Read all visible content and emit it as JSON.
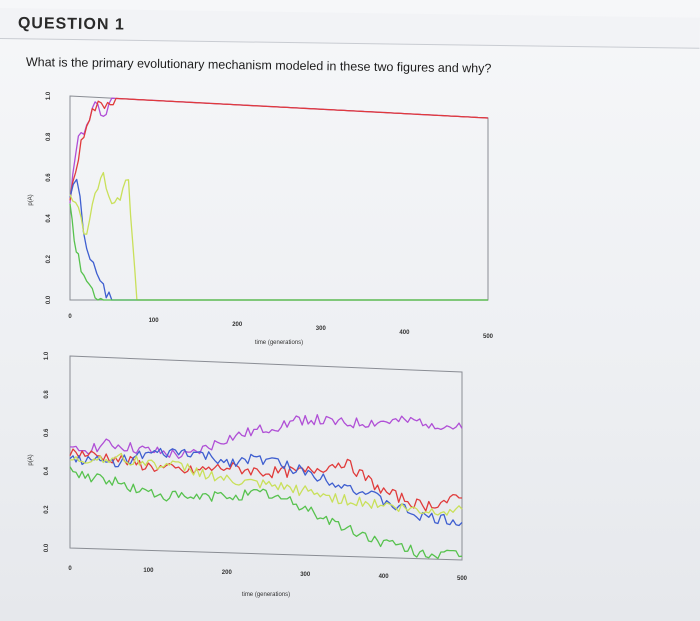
{
  "question": {
    "title": "QUESTION 1",
    "text": "What is the primary evolutionary mechanism modeled in these two figures and why?"
  },
  "chart_data": [
    {
      "type": "line",
      "xlabel": "time (generations)",
      "ylabel": "p(A)",
      "x_ticks": [
        "0",
        "100",
        "200",
        "300",
        "400",
        "500"
      ],
      "y_ticks": [
        "0.0",
        "0.2",
        "0.4",
        "0.6",
        "0.8",
        "1.0"
      ],
      "xlim": [
        0,
        500
      ],
      "ylim": [
        0,
        1
      ],
      "series": [
        {
          "color": "#b04fd6",
          "values": [
            [
              0,
              0.5
            ],
            [
              10,
              0.8
            ],
            [
              20,
              0.85
            ],
            [
              30,
              0.96
            ],
            [
              40,
              0.92
            ],
            [
              50,
              1.0
            ],
            [
              100,
              1.0
            ],
            [
              500,
              1.0
            ]
          ]
        },
        {
          "color": "#e03b3b",
          "values": [
            [
              0,
              0.5
            ],
            [
              10,
              0.7
            ],
            [
              20,
              0.88
            ],
            [
              30,
              0.95
            ],
            [
              45,
              0.98
            ],
            [
              55,
              1.0
            ],
            [
              500,
              1.0
            ]
          ]
        },
        {
          "color": "#3f5fd0",
          "values": [
            [
              0,
              0.5
            ],
            [
              8,
              0.62
            ],
            [
              16,
              0.35
            ],
            [
              24,
              0.2
            ],
            [
              32,
              0.12
            ],
            [
              40,
              0.05
            ],
            [
              50,
              0.0
            ],
            [
              500,
              0.0
            ]
          ]
        },
        {
          "color": "#c9e05a",
          "values": [
            [
              0,
              0.5
            ],
            [
              10,
              0.45
            ],
            [
              20,
              0.3
            ],
            [
              30,
              0.55
            ],
            [
              40,
              0.62
            ],
            [
              50,
              0.45
            ],
            [
              60,
              0.5
            ],
            [
              70,
              0.6
            ],
            [
              75,
              0.3
            ],
            [
              80,
              0.0
            ],
            [
              500,
              0.0
            ]
          ]
        },
        {
          "color": "#57c24e",
          "values": [
            [
              0,
              0.5
            ],
            [
              5,
              0.3
            ],
            [
              10,
              0.2
            ],
            [
              20,
              0.1
            ],
            [
              30,
              0.03
            ],
            [
              40,
              0.0
            ],
            [
              500,
              0.0
            ]
          ]
        }
      ]
    },
    {
      "type": "line",
      "xlabel": "time (generations)",
      "ylabel": "p(A)",
      "x_ticks": [
        "0",
        "100",
        "200",
        "300",
        "400",
        "500"
      ],
      "y_ticks": [
        "0.0",
        "0.2",
        "0.4",
        "0.6",
        "0.8",
        "1.0"
      ],
      "xlim": [
        0,
        500
      ],
      "ylim": [
        0,
        1
      ],
      "series": [
        {
          "color": "#b04fd6",
          "values": [
            [
              0,
              0.5
            ],
            [
              50,
              0.55
            ],
            [
              100,
              0.52
            ],
            [
              150,
              0.5
            ],
            [
              200,
              0.6
            ],
            [
              250,
              0.66
            ],
            [
              300,
              0.72
            ],
            [
              350,
              0.7
            ],
            [
              400,
              0.72
            ],
            [
              450,
              0.73
            ],
            [
              500,
              0.7
            ]
          ]
        },
        {
          "color": "#e03b3b",
          "values": [
            [
              0,
              0.5
            ],
            [
              50,
              0.48
            ],
            [
              100,
              0.44
            ],
            [
              150,
              0.42
            ],
            [
              200,
              0.45
            ],
            [
              250,
              0.43
            ],
            [
              300,
              0.44
            ],
            [
              350,
              0.5
            ],
            [
              400,
              0.35
            ],
            [
              450,
              0.28
            ],
            [
              500,
              0.33
            ]
          ]
        },
        {
          "color": "#3f5fd0",
          "values": [
            [
              0,
              0.47
            ],
            [
              50,
              0.45
            ],
            [
              100,
              0.5
            ],
            [
              150,
              0.52
            ],
            [
              200,
              0.48
            ],
            [
              250,
              0.5
            ],
            [
              300,
              0.44
            ],
            [
              350,
              0.38
            ],
            [
              400,
              0.3
            ],
            [
              450,
              0.22
            ],
            [
              500,
              0.2
            ]
          ]
        },
        {
          "color": "#c9e05a",
          "values": [
            [
              0,
              0.45
            ],
            [
              50,
              0.48
            ],
            [
              100,
              0.46
            ],
            [
              150,
              0.44
            ],
            [
              200,
              0.38
            ],
            [
              250,
              0.36
            ],
            [
              300,
              0.34
            ],
            [
              350,
              0.3
            ],
            [
              400,
              0.28
            ],
            [
              450,
              0.25
            ],
            [
              500,
              0.27
            ]
          ]
        },
        {
          "color": "#57c24e",
          "values": [
            [
              0,
              0.4
            ],
            [
              50,
              0.36
            ],
            [
              100,
              0.3
            ],
            [
              150,
              0.28
            ],
            [
              200,
              0.3
            ],
            [
              250,
              0.32
            ],
            [
              300,
              0.25
            ],
            [
              350,
              0.15
            ],
            [
              400,
              0.08
            ],
            [
              450,
              0.03
            ],
            [
              500,
              0.02
            ]
          ]
        }
      ]
    }
  ]
}
